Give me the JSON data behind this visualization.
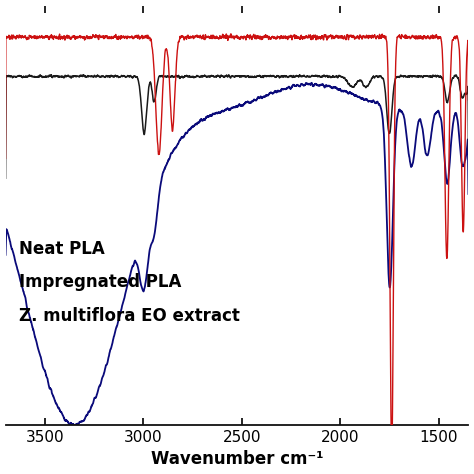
{
  "title": "",
  "xlabel": "Wavenumber cm⁻¹",
  "xlim": [
    3700,
    1350
  ],
  "ylim": [
    -0.55,
    1.05
  ],
  "background_color": "#ffffff",
  "legend_labels": [
    "Neat PLA",
    "Impregnated PLA",
    "Z. multiflora EO extract"
  ],
  "legend_colors": [
    "#1a1a1a",
    "#0a0a7a",
    "#cc1111"
  ],
  "xticks": [
    3500,
    3000,
    2500,
    2000,
    1500
  ],
  "xlabel_fontsize": 12,
  "tick_fontsize": 11,
  "legend_fontsize": 12
}
